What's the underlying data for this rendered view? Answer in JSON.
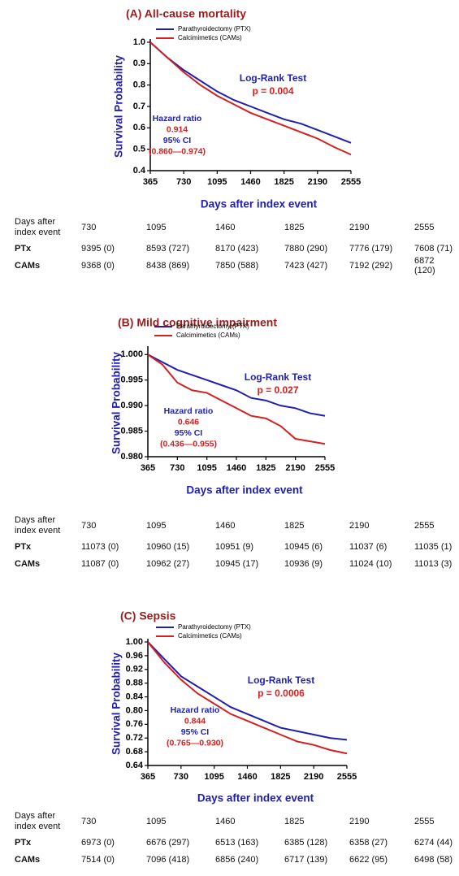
{
  "chart_data": [
    {
      "type": "line",
      "title": "(A) All-cause mortality",
      "xlabel": "Days after index event",
      "ylabel": "Survival Probability",
      "x": [
        365,
        547,
        730,
        912,
        1095,
        1277,
        1460,
        1642,
        1825,
        2007,
        2190,
        2372,
        2555
      ],
      "series": [
        {
          "name": "Parathyroidectomy (PTX)",
          "color": "#1f1fb0",
          "values": [
            1.0,
            0.93,
            0.87,
            0.82,
            0.77,
            0.73,
            0.7,
            0.67,
            0.64,
            0.62,
            0.59,
            0.56,
            0.53
          ]
        },
        {
          "name": "Calcimimetics (CAMs)",
          "color": "#d42020",
          "values": [
            1.0,
            0.93,
            0.86,
            0.8,
            0.75,
            0.71,
            0.67,
            0.64,
            0.61,
            0.58,
            0.55,
            0.51,
            0.475
          ]
        }
      ],
      "xlim": [
        365,
        2555
      ],
      "xticks": [
        365,
        730,
        1095,
        1460,
        1825,
        2190,
        2555
      ],
      "ylim": [
        0.4,
        1.0
      ],
      "yticks": [
        {
          "value": 1.0,
          "label": "1.0"
        },
        0.9,
        0.8,
        0.7,
        0.6,
        0.5,
        0.4
      ],
      "legend": "top-left",
      "log_rank": {
        "label": "Log-Rank Test",
        "p": "p = 0.004"
      },
      "hazard": {
        "label": "Hazard ratio",
        "value": 0.914,
        "ci_label": "95% CI",
        "ci": "(0.860—0.974)"
      },
      "table": {
        "header": [
          "Days after index event",
          730,
          1095,
          1460,
          1825,
          2190,
          2555
        ],
        "rows": [
          {
            "label": "PTx",
            "cells": [
              "9395 (0)",
              "8593 (727)",
              "8170 (423)",
              "7880 (290)",
              "7776 (179)",
              "7608 (71)"
            ]
          },
          {
            "label": "CAMs",
            "cells": [
              "9368 (0)",
              "8438 (869)",
              "7850 (588)",
              "7423 (427)",
              "7192 (292)",
              "6872 (120)"
            ]
          }
        ]
      }
    },
    {
      "type": "line",
      "title": "(B) Mild cognitive impairment",
      "xlabel": "Days after index event",
      "ylabel": "Survival Probability",
      "x": [
        365,
        547,
        730,
        912,
        1095,
        1277,
        1460,
        1642,
        1825,
        2007,
        2190,
        2372,
        2555
      ],
      "series": [
        {
          "name": "Parathyroidectomy (PTX)",
          "color": "#1f1fb0",
          "values": [
            1.0,
            0.9985,
            0.997,
            0.996,
            0.995,
            0.994,
            0.993,
            0.9915,
            0.991,
            0.99,
            0.9895,
            0.9885,
            0.988
          ]
        },
        {
          "name": "Calcimimetics (CAMs)",
          "color": "#d42020",
          "values": [
            1.0,
            0.998,
            0.9945,
            0.993,
            0.9925,
            0.991,
            0.9895,
            0.988,
            0.9875,
            0.986,
            0.9835,
            0.983,
            0.9825
          ]
        }
      ],
      "xlim": [
        365,
        2555
      ],
      "xticks": [
        365,
        730,
        1095,
        1460,
        1825,
        2190,
        2555
      ],
      "ylim": [
        0.98,
        1.001
      ],
      "yticks": [
        {
          "value": 1.0,
          "label": "1.000"
        },
        0.995,
        {
          "value": 0.99,
          "label": "0.990"
        },
        0.985,
        {
          "value": 0.98,
          "label": "0.980"
        }
      ],
      "legend": "top-left",
      "log_rank": {
        "label": "Log-Rank Test",
        "p": "p = 0.027"
      },
      "hazard": {
        "label": "Hazard ratio",
        "value": 0.646,
        "ci_label": "95% CI",
        "ci": "(0.436—0.955)"
      },
      "table": {
        "header": [
          "Days after index event",
          730,
          1095,
          1460,
          1825,
          2190,
          2555
        ],
        "rows": [
          {
            "label": "PTx",
            "cells": [
              "11073 (0)",
              "10960 (15)",
              "10951 (9)",
              "10945 (6)",
              "11037 (6)",
              "11035 (1)"
            ]
          },
          {
            "label": "CAMs",
            "cells": [
              "11087 (0)",
              "10962 (27)",
              "10945 (17)",
              "10936 (9)",
              "11024 (10)",
              "11013 (3)"
            ]
          }
        ]
      }
    },
    {
      "type": "line",
      "title": "(C) Sepsis",
      "xlabel": "Days after index event",
      "ylabel": "Survival Probability",
      "x": [
        365,
        547,
        730,
        912,
        1095,
        1277,
        1460,
        1642,
        1825,
        2007,
        2190,
        2372,
        2555
      ],
      "series": [
        {
          "name": "Parathyroidectomy (PTX)",
          "color": "#1f1fb0",
          "values": [
            1.0,
            0.95,
            0.9,
            0.87,
            0.84,
            0.81,
            0.79,
            0.77,
            0.75,
            0.74,
            0.73,
            0.72,
            0.715
          ]
        },
        {
          "name": "Calcimimetics (CAMs)",
          "color": "#d42020",
          "values": [
            1.0,
            0.94,
            0.89,
            0.85,
            0.82,
            0.79,
            0.77,
            0.75,
            0.73,
            0.71,
            0.7,
            0.685,
            0.675
          ]
        }
      ],
      "xlim": [
        365,
        2555
      ],
      "xticks": [
        365,
        730,
        1095,
        1460,
        1825,
        2190,
        2555
      ],
      "ylim": [
        0.64,
        1.0
      ],
      "yticks": [
        {
          "value": 1.0,
          "label": "1.00"
        },
        0.96,
        0.92,
        0.88,
        0.84,
        {
          "value": 0.8,
          "label": "0.80"
        },
        0.76,
        0.72,
        0.68,
        0.64
      ],
      "legend": "top-left",
      "log_rank": {
        "label": "Log-Rank Test",
        "p": "p = 0.0006"
      },
      "hazard": {
        "label": "Hazard ratio",
        "value": 0.844,
        "ci_label": "95% CI",
        "ci": "(0.765—0.930)"
      },
      "table": {
        "header": [
          "Days after index event",
          730,
          1095,
          1460,
          1825,
          2190,
          2555
        ],
        "rows": [
          {
            "label": "PTx",
            "cells": [
              "6973 (0)",
              "6676 (297)",
              "6513 (163)",
              "6385 (128)",
              "6358 (27)",
              "6274 (44)"
            ]
          },
          {
            "label": "CAMs",
            "cells": [
              "7514 (0)",
              "7096 (418)",
              "6856 (240)",
              "6717 (139)",
              "6622 (95)",
              "6498 (58)"
            ]
          }
        ]
      }
    }
  ]
}
